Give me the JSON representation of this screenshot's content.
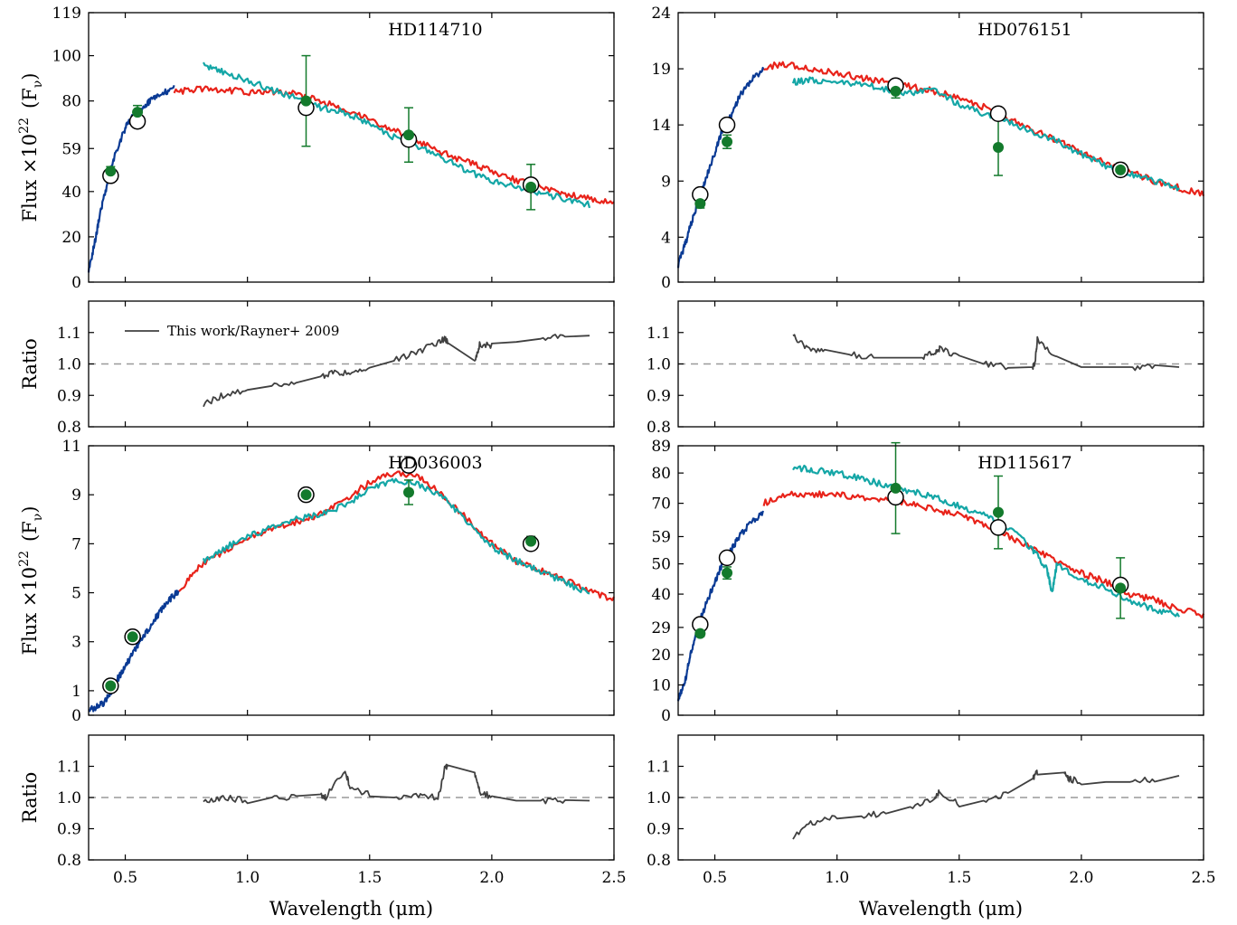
{
  "chart_data": [
    {
      "type": "line",
      "star": "HD114710",
      "ylabel_base": "Flux ×10",
      "ylabel_exp": "22",
      "ylabel_unit": "(F",
      "ylabel_sub": "ν",
      "ylim": [
        0,
        119
      ],
      "yticks": [
        0,
        20,
        40,
        59,
        80,
        100,
        119
      ],
      "xlim": [
        0.35,
        2.5
      ],
      "series": [
        {
          "color": "#0a3a94",
          "x": [
            0.35,
            0.38,
            0.4,
            0.43,
            0.46,
            0.5,
            0.53,
            0.57,
            0.6,
            0.65,
            0.7
          ],
          "y": [
            5,
            20,
            32,
            45,
            57,
            68,
            73,
            77,
            80,
            83,
            86
          ]
        },
        {
          "color": "#e8231a",
          "x": [
            0.7,
            0.8,
            0.9,
            1.0,
            1.1,
            1.2,
            1.3,
            1.4,
            1.5,
            1.6,
            1.7,
            1.8,
            1.9,
            2.0,
            2.1,
            2.2,
            2.3,
            2.4,
            2.5
          ],
          "y": [
            84,
            85,
            85,
            84,
            84,
            83,
            80,
            76,
            72,
            67,
            62,
            57,
            53,
            49,
            45,
            42,
            39,
            37,
            35
          ]
        },
        {
          "color": "#14a6a6",
          "x": [
            0.82,
            0.9,
            1.0,
            1.1,
            1.2,
            1.3,
            1.4,
            1.5,
            1.6,
            1.7,
            1.8,
            1.9,
            2.0,
            2.1,
            2.2,
            2.3,
            2.4
          ],
          "y": [
            96,
            93,
            89,
            85,
            81,
            77,
            75,
            70,
            64,
            60,
            55,
            49,
            45,
            42,
            39,
            37,
            34
          ]
        }
      ],
      "photometry_open": {
        "x": [
          0.44,
          0.55,
          1.24,
          1.66,
          2.16
        ],
        "y": [
          47,
          71,
          77,
          63,
          43
        ]
      },
      "photometry_green": {
        "x": [
          0.44,
          0.55,
          1.24,
          1.66,
          2.16
        ],
        "y": [
          49,
          75,
          80,
          65,
          42
        ],
        "err": [
          2,
          3,
          20,
          12,
          10
        ]
      },
      "ratio": {
        "ylim": [
          0.8,
          1.2
        ],
        "yticks": [
          "0.8",
          "0.9",
          "1.0",
          "1.1"
        ],
        "legend": "This work/Rayner+ 2009",
        "x": [
          0.82,
          0.9,
          1.0,
          1.1,
          1.2,
          1.3,
          1.35,
          1.42,
          1.5,
          1.6,
          1.7,
          1.78,
          1.81,
          1.82,
          1.93,
          1.95,
          2.0,
          2.1,
          2.2,
          2.3,
          2.4
        ],
        "y": [
          0.87,
          0.9,
          0.92,
          0.93,
          0.94,
          0.96,
          0.97,
          0.97,
          0.99,
          1.01,
          1.04,
          1.07,
          1.08,
          1.07,
          1.01,
          1.06,
          1.06,
          1.07,
          1.08,
          1.09,
          1.09
        ]
      }
    },
    {
      "type": "line",
      "star": "HD076151",
      "ylim": [
        0,
        24
      ],
      "yticks": [
        0,
        4,
        9,
        14,
        19,
        24
      ],
      "xlim": [
        0.35,
        2.5
      ],
      "series": [
        {
          "color": "#0a3a94",
          "x": [
            0.35,
            0.38,
            0.4,
            0.43,
            0.46,
            0.5,
            0.53,
            0.57,
            0.6,
            0.65,
            0.7
          ],
          "y": [
            1.5,
            3.5,
            5,
            7,
            9,
            11.5,
            13.5,
            15,
            16.5,
            18,
            19
          ]
        },
        {
          "color": "#e8231a",
          "x": [
            0.7,
            0.8,
            0.9,
            1.0,
            1.1,
            1.2,
            1.3,
            1.4,
            1.5,
            1.6,
            1.7,
            1.8,
            1.9,
            2.0,
            2.1,
            2.2,
            2.3,
            2.4,
            2.5
          ],
          "y": [
            19.2,
            19.4,
            19.0,
            18.6,
            18.2,
            17.8,
            17.4,
            17.0,
            16.4,
            15.6,
            14.6,
            13.6,
            12.6,
            11.6,
            10.6,
            9.8,
            9.0,
            8.4,
            7.8
          ]
        },
        {
          "color": "#14a6a6",
          "x": [
            0.82,
            0.9,
            1.0,
            1.1,
            1.2,
            1.3,
            1.4,
            1.5,
            1.6,
            1.7,
            1.8,
            1.9,
            2.0,
            2.1,
            2.2,
            2.3,
            2.4
          ],
          "y": [
            17.8,
            18.0,
            17.8,
            17.6,
            17.2,
            16.8,
            17.2,
            15.8,
            15.0,
            14.2,
            13.4,
            12.6,
            11.4,
            10.4,
            9.6,
            9.0,
            8.4
          ]
        }
      ],
      "photometry_open": {
        "x": [
          0.44,
          0.55,
          1.24,
          1.66,
          2.16
        ],
        "y": [
          7.8,
          14,
          17.5,
          15,
          10
        ]
      },
      "photometry_green": {
        "x": [
          0.44,
          0.55,
          1.24,
          1.66,
          2.16
        ],
        "y": [
          7,
          12.5,
          17,
          12,
          10
        ],
        "err": [
          0.4,
          0.6,
          0.6,
          2.5,
          0.6
        ]
      },
      "ratio": {
        "ylim": [
          0.8,
          1.2
        ],
        "yticks": [
          "0.8",
          "0.9",
          "1.0",
          "1.1"
        ],
        "x": [
          0.82,
          0.88,
          0.95,
          1.05,
          1.15,
          1.25,
          1.35,
          1.4,
          1.42,
          1.5,
          1.6,
          1.7,
          1.8,
          1.81,
          1.82,
          1.9,
          2.0,
          2.1,
          2.2,
          2.3,
          2.4
        ],
        "y": [
          1.09,
          1.05,
          1.04,
          1.03,
          1.02,
          1.02,
          1.02,
          1.04,
          1.05,
          1.02,
          1.0,
          0.99,
          0.99,
          1.0,
          1.08,
          1.02,
          0.99,
          0.99,
          0.99,
          0.99,
          0.99
        ]
      }
    },
    {
      "type": "line",
      "star": "HD036003",
      "ylim": [
        0,
        11
      ],
      "yticks": [
        0,
        1,
        3,
        5,
        7,
        9,
        11
      ],
      "xlim": [
        0.35,
        2.5
      ],
      "series": [
        {
          "color": "#0a3a94",
          "x": [
            0.35,
            0.38,
            0.41,
            0.44,
            0.47,
            0.5,
            0.53,
            0.56,
            0.6,
            0.64,
            0.68,
            0.72
          ],
          "y": [
            0.2,
            0.3,
            0.5,
            0.9,
            1.5,
            2.0,
            2.5,
            3.0,
            3.6,
            4.2,
            4.7,
            5.1
          ]
        },
        {
          "color": "#e8231a",
          "x": [
            0.72,
            0.8,
            0.9,
            1.0,
            1.1,
            1.2,
            1.3,
            1.4,
            1.5,
            1.6,
            1.7,
            1.8,
            1.9,
            2.0,
            2.1,
            2.2,
            2.3,
            2.4,
            2.5
          ],
          "y": [
            5.1,
            6.0,
            6.7,
            7.2,
            7.6,
            7.9,
            8.2,
            8.8,
            9.5,
            9.9,
            9.7,
            9.0,
            8.0,
            7.0,
            6.3,
            5.9,
            5.5,
            5.1,
            4.7
          ]
        },
        {
          "color": "#14a6a6",
          "x": [
            0.82,
            0.9,
            1.0,
            1.1,
            1.2,
            1.3,
            1.4,
            1.5,
            1.6,
            1.7,
            1.8,
            1.9,
            2.0,
            2.1,
            2.2,
            2.3,
            2.4
          ],
          "y": [
            6.3,
            6.8,
            7.3,
            7.7,
            8.0,
            8.2,
            8.6,
            9.2,
            9.6,
            9.4,
            8.9,
            7.9,
            6.9,
            6.3,
            5.9,
            5.4,
            5.0
          ]
        }
      ],
      "photometry_open": {
        "x": [
          0.44,
          0.53,
          1.24,
          1.66,
          2.16
        ],
        "y": [
          1.2,
          3.2,
          9.0,
          10.2,
          7.0
        ]
      },
      "photometry_green": {
        "x": [
          0.44,
          0.53,
          1.24,
          1.66,
          2.16
        ],
        "y": [
          1.2,
          3.2,
          9.0,
          9.1,
          7.1
        ],
        "err": [
          0.1,
          0.15,
          0.2,
          0.5,
          0.2
        ]
      },
      "ratio": {
        "ylim": [
          0.8,
          1.2
        ],
        "yticks": [
          "0.8",
          "0.9",
          "1.0",
          "1.1"
        ],
        "x": [
          0.82,
          0.9,
          1.0,
          1.1,
          1.2,
          1.3,
          1.32,
          1.4,
          1.42,
          1.5,
          1.6,
          1.7,
          1.78,
          1.81,
          1.82,
          1.93,
          1.95,
          2.0,
          2.1,
          2.2,
          2.3,
          2.4
        ],
        "y": [
          0.99,
          1.0,
          0.99,
          1.0,
          1.0,
          1.01,
          1.0,
          1.09,
          1.03,
          1.01,
          1.0,
          1.01,
          1.0,
          1.1,
          1.1,
          1.08,
          1.02,
          1.0,
          0.99,
          0.99,
          0.99,
          0.99
        ]
      }
    },
    {
      "type": "line",
      "star": "HD115617",
      "ylim": [
        0,
        89
      ],
      "yticks": [
        0,
        10,
        20,
        29,
        40,
        50,
        59,
        70,
        80,
        89
      ],
      "xlim": [
        0.35,
        2.5
      ],
      "series": [
        {
          "color": "#0a3a94",
          "x": [
            0.35,
            0.38,
            0.4,
            0.43,
            0.46,
            0.5,
            0.53,
            0.57,
            0.6,
            0.65,
            0.7
          ],
          "y": [
            5,
            12,
            20,
            29,
            36,
            44,
            50,
            55,
            59,
            64,
            67
          ]
        },
        {
          "color": "#e8231a",
          "x": [
            0.7,
            0.8,
            0.9,
            1.0,
            1.1,
            1.2,
            1.3,
            1.4,
            1.5,
            1.6,
            1.7,
            1.8,
            1.9,
            2.0,
            2.1,
            2.2,
            2.3,
            2.4,
            2.5
          ],
          "y": [
            70,
            73,
            73,
            73,
            72,
            71,
            70,
            68,
            66,
            63,
            59,
            55,
            51,
            47,
            44,
            40,
            38,
            35,
            33
          ]
        },
        {
          "color": "#14a6a6",
          "x": [
            0.82,
            0.9,
            1.0,
            1.1,
            1.2,
            1.3,
            1.4,
            1.5,
            1.6,
            1.7,
            1.8,
            1.86,
            1.88,
            1.9,
            2.0,
            2.1,
            2.2,
            2.3,
            2.4
          ],
          "y": [
            82,
            81,
            80,
            78,
            76,
            74,
            72,
            69,
            66,
            62,
            55,
            48,
            40,
            50,
            45,
            42,
            38,
            35,
            33
          ]
        }
      ],
      "photometry_open": {
        "x": [
          0.44,
          0.55,
          1.24,
          1.66,
          2.16
        ],
        "y": [
          30,
          52,
          72,
          62,
          43
        ]
      },
      "photometry_green": {
        "x": [
          0.44,
          0.55,
          1.24,
          1.66,
          2.16
        ],
        "y": [
          27,
          47,
          75,
          67,
          42
        ],
        "err": [
          1,
          2,
          15,
          12,
          10
        ]
      },
      "ratio": {
        "ylim": [
          0.8,
          1.2
        ],
        "yticks": [
          "0.8",
          "0.9",
          "1.0",
          "1.1"
        ],
        "x": [
          0.82,
          0.9,
          1.0,
          1.1,
          1.2,
          1.3,
          1.4,
          1.42,
          1.5,
          1.6,
          1.7,
          1.8,
          1.82,
          1.93,
          1.95,
          2.0,
          2.1,
          2.2,
          2.3,
          2.4
        ],
        "y": [
          0.87,
          0.92,
          0.94,
          0.94,
          0.95,
          0.97,
          1.0,
          1.02,
          0.98,
          0.99,
          1.01,
          1.06,
          1.08,
          1.08,
          1.06,
          1.05,
          1.05,
          1.05,
          1.06,
          1.07
        ]
      }
    }
  ],
  "shared": {
    "xticks": [
      "0.5",
      "1.0",
      "1.5",
      "2.0",
      "2.5"
    ],
    "xlabel": "Wavelength (μm)",
    "ratio_ylabel": "Ratio"
  }
}
